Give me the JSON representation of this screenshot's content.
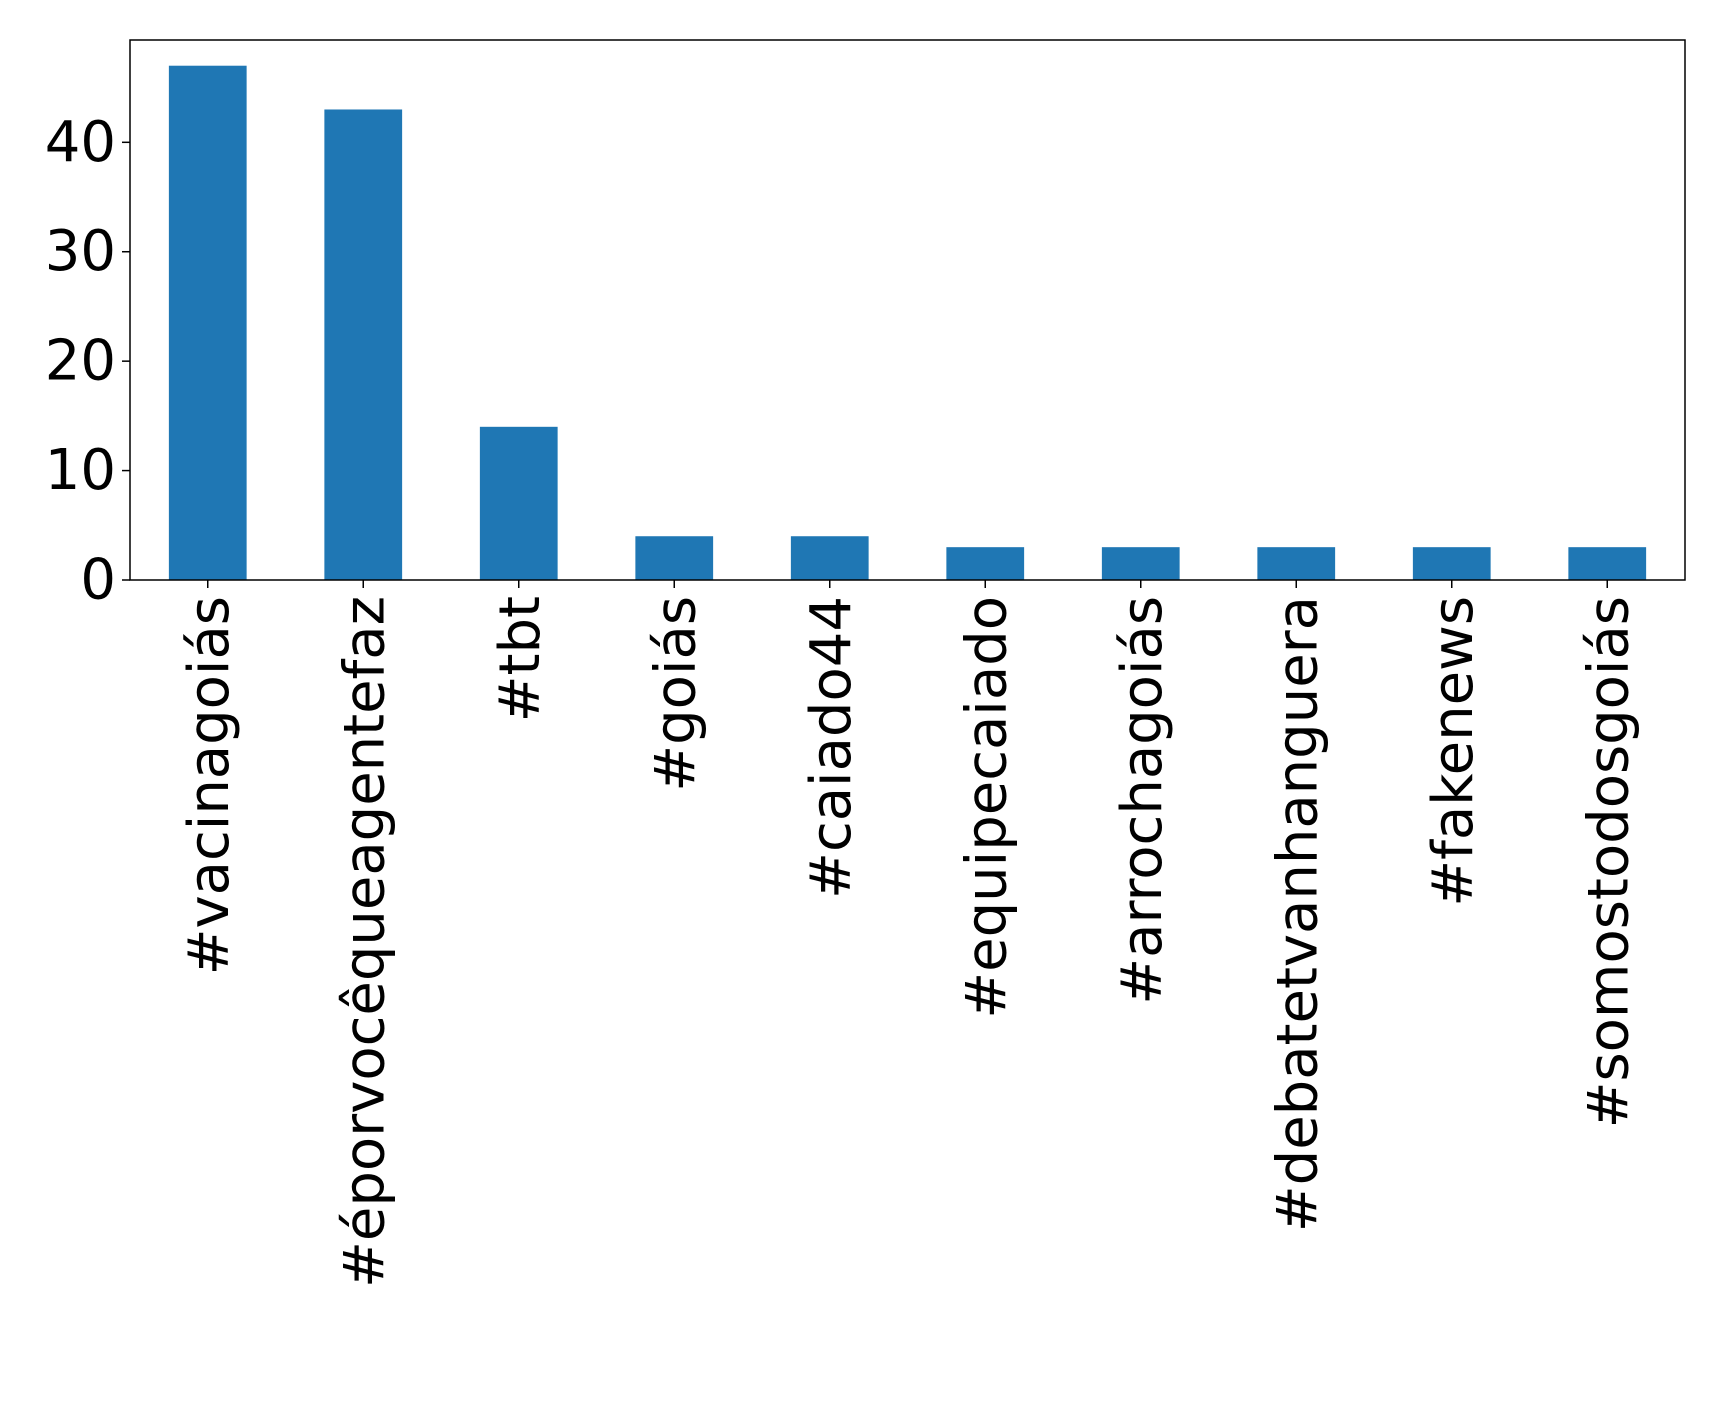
{
  "chart_data": {
    "type": "bar",
    "title": "",
    "xlabel": "",
    "ylabel": "",
    "categories": [
      "#vacinagoiás",
      "#éporvocêqueagentefaz",
      "#tbt",
      "#goiás",
      "#caiado44",
      "#equipecaiado",
      "#arrochagoiás",
      "#debatetvanhanguera",
      "#fakenews",
      "#somostodosgoiás"
    ],
    "values": [
      47,
      43,
      14,
      4,
      4,
      3,
      3,
      3,
      3,
      3
    ],
    "ylim": [
      0,
      49.35
    ],
    "yticks": [
      0,
      10,
      20,
      30,
      40
    ],
    "grid": false,
    "legend": "none",
    "bar_color": "#1f77b4"
  }
}
